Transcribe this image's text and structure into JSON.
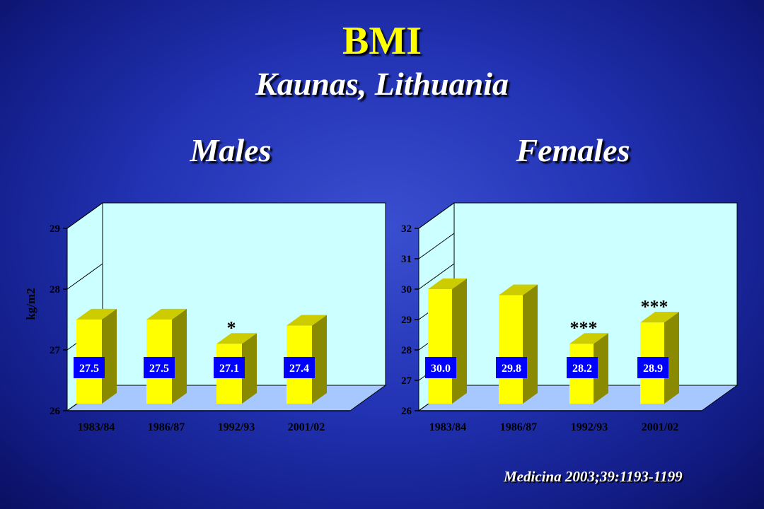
{
  "slide": {
    "title": "BMI",
    "subtitle": "Kaunas, Lithuania",
    "source": "Medicina 2003;39:1193-1199"
  },
  "colors": {
    "bar_front": "#ffff00",
    "bar_side": "#8a8a00",
    "bar_top": "#cccc00",
    "back_wall": "#ccffff",
    "floor": "#a6c8ff",
    "label_box": "#0000ff",
    "label_text": "#ffffff",
    "title": "#ffff00",
    "text": "#ffffff"
  },
  "chart_data": [
    {
      "type": "bar",
      "title": "Males",
      "ylabel": "kg/m2",
      "categories": [
        "1983/84",
        "1986/87",
        "1992/93",
        "2001/02"
      ],
      "values": [
        27.5,
        27.5,
        27.1,
        27.4
      ],
      "value_labels": [
        "27.5",
        "27.5",
        "27.1",
        "27.4"
      ],
      "annotations": [
        "",
        "",
        "*",
        ""
      ],
      "ylim": [
        26,
        29
      ],
      "yticks": [
        26,
        27,
        28,
        29
      ],
      "ytick_labels": [
        "26",
        "27",
        "28",
        "29"
      ],
      "style": "3d"
    },
    {
      "type": "bar",
      "title": "Females",
      "ylabel": "",
      "categories": [
        "1983/84",
        "1986/87",
        "1992/93",
        "2001/02"
      ],
      "values": [
        30.0,
        29.8,
        28.2,
        28.9
      ],
      "value_labels": [
        "30.0",
        "29.8",
        "28.2",
        "28.9"
      ],
      "annotations": [
        "",
        "",
        "***",
        "***"
      ],
      "ylim": [
        26,
        32
      ],
      "yticks": [
        26,
        27,
        28,
        29,
        30,
        31,
        32
      ],
      "ytick_labels": [
        "26",
        "27",
        "28",
        "29",
        "30",
        "31",
        "32"
      ],
      "style": "3d"
    }
  ]
}
